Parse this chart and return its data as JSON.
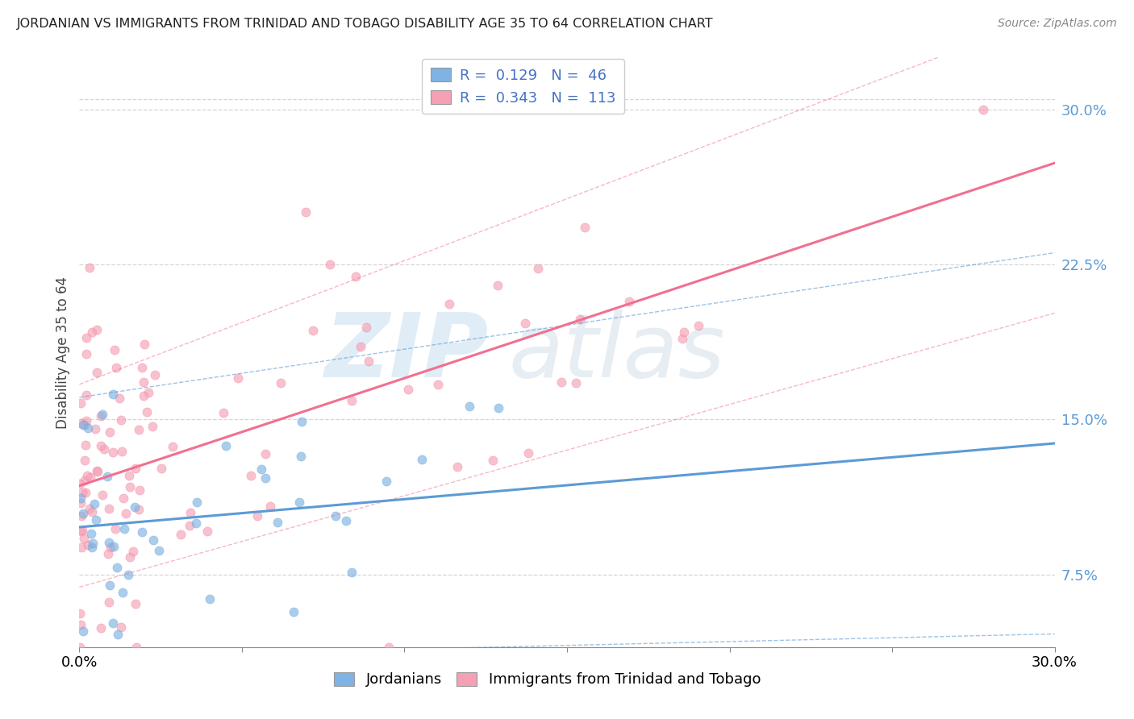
{
  "title": "JORDANIAN VS IMMIGRANTS FROM TRINIDAD AND TOBAGO DISABILITY AGE 35 TO 64 CORRELATION CHART",
  "source": "Source: ZipAtlas.com",
  "ylabel": "Disability Age 35 to 64",
  "xlim": [
    0.0,
    0.3
  ],
  "ylim": [
    0.04,
    0.325
  ],
  "xticks": [
    0.0,
    0.05,
    0.1,
    0.15,
    0.2,
    0.25,
    0.3
  ],
  "xticklabels": [
    "0.0%",
    "",
    "",
    "",
    "",
    "",
    "30.0%"
  ],
  "ytick_positions": [
    0.075,
    0.15,
    0.225,
    0.3
  ],
  "yticklabels": [
    "7.5%",
    "15.0%",
    "22.5%",
    "30.0%"
  ],
  "blue_color": "#7EB3E3",
  "pink_color": "#F5A0B5",
  "blue_line_color": "#5B9BD5",
  "pink_line_color": "#F07090",
  "N_blue": 46,
  "N_pink": 113,
  "blue_intercept": 0.098,
  "blue_slope": 0.135,
  "pink_intercept": 0.118,
  "pink_slope": 0.52,
  "legend_blue_label": "R =  0.129   N =  46",
  "legend_pink_label": "R =  0.343   N =  113",
  "bottom_legend_blue": "Jordanians",
  "bottom_legend_pink": "Immigrants from Trinidad and Tobago",
  "grid_color": "#CCCCCC",
  "background_color": "#FFFFFF"
}
